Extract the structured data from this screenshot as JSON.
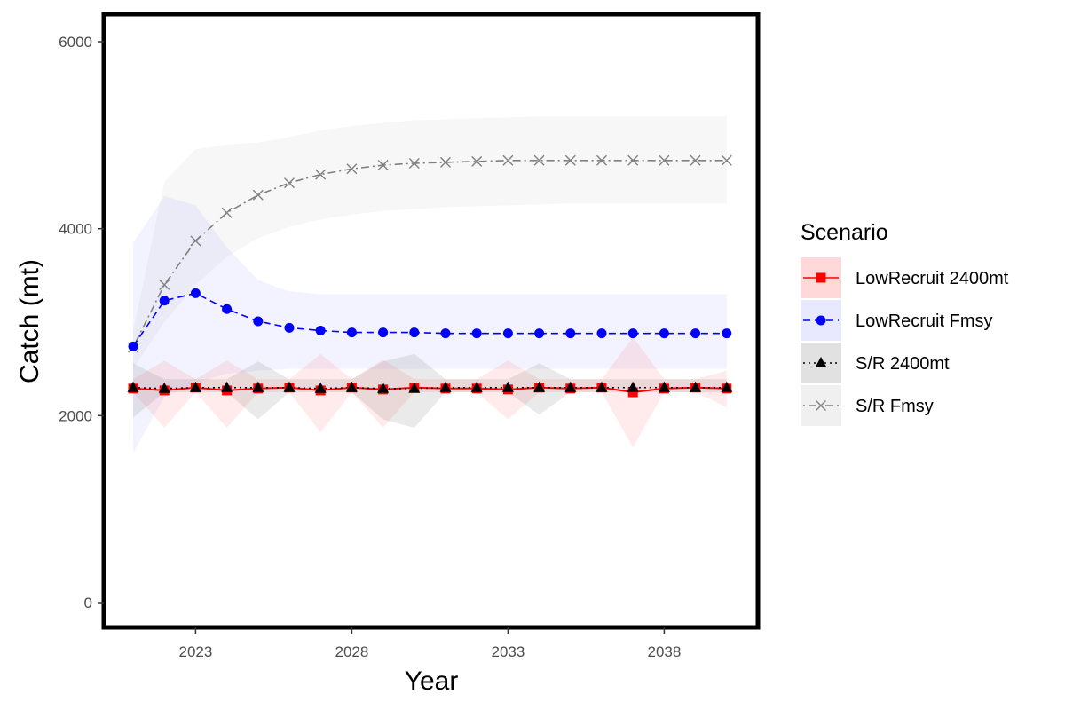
{
  "chart_data": {
    "type": "line",
    "title": "",
    "xlabel": "Year",
    "ylabel": "Catch (mt)",
    "xlim": [
      2021,
      2040
    ],
    "ylim": [
      0,
      6000
    ],
    "x_ticks": [
      2023,
      2028,
      2033,
      2038
    ],
    "y_ticks": [
      0,
      2000,
      4000,
      6000
    ],
    "grid": false,
    "legend": {
      "title": "Scenario",
      "position": "right"
    },
    "x": [
      2021,
      2022,
      2023,
      2024,
      2025,
      2026,
      2027,
      2028,
      2029,
      2030,
      2031,
      2032,
      2033,
      2034,
      2035,
      2036,
      2037,
      2038,
      2039,
      2040
    ],
    "series": [
      {
        "name": "LowRecruit 2400mt",
        "color": "#ff0000",
        "marker": "square",
        "linestyle": "solid",
        "band_fill": "#ff0000",
        "values": [
          2290,
          2270,
          2300,
          2270,
          2290,
          2300,
          2270,
          2300,
          2280,
          2300,
          2290,
          2290,
          2280,
          2300,
          2290,
          2300,
          2250,
          2290,
          2300,
          2290
        ],
        "lower": [
          2250,
          1870,
          2250,
          1870,
          2250,
          2250,
          1820,
          2250,
          1870,
          2250,
          2250,
          2250,
          1960,
          2250,
          2250,
          2250,
          1660,
          2250,
          2250,
          2090
        ],
        "upper": [
          2390,
          2590,
          2390,
          2590,
          2390,
          2390,
          2660,
          2390,
          2600,
          2390,
          2390,
          2390,
          2590,
          2390,
          2390,
          2390,
          2840,
          2390,
          2390,
          2480
        ]
      },
      {
        "name": "LowRecruit Fmsy",
        "color": "#0000ff",
        "marker": "circle",
        "linestyle": "dashed",
        "band_fill": "#6666ff",
        "values": [
          2740,
          3230,
          3310,
          3140,
          3010,
          2940,
          2910,
          2890,
          2890,
          2890,
          2880,
          2880,
          2880,
          2880,
          2880,
          2880,
          2880,
          2880,
          2880,
          2880
        ],
        "lower": [
          1600,
          2200,
          2350,
          2450,
          2480,
          2500,
          2500,
          2500,
          2500,
          2500,
          2500,
          2500,
          2500,
          2500,
          2500,
          2500,
          2500,
          2500,
          2500,
          2500
        ],
        "upper": [
          3850,
          4350,
          4250,
          3800,
          3450,
          3330,
          3300,
          3300,
          3300,
          3300,
          3300,
          3300,
          3300,
          3300,
          3300,
          3300,
          3300,
          3300,
          3300,
          3300
        ]
      },
      {
        "name": "S/R 2400mt",
        "color": "#000000",
        "marker": "triangle",
        "linestyle": "dotted",
        "band_fill": "#333333",
        "values": [
          2300,
          2290,
          2300,
          2300,
          2300,
          2300,
          2290,
          2300,
          2290,
          2290,
          2300,
          2300,
          2300,
          2300,
          2300,
          2300,
          2300,
          2300,
          2300,
          2300
        ],
        "lower": [
          1980,
          2250,
          2250,
          2250,
          1960,
          2250,
          2250,
          2250,
          1960,
          1870,
          2250,
          2250,
          2250,
          2010,
          2250,
          2250,
          2250,
          2250,
          2250,
          2250
        ],
        "upper": [
          2560,
          2390,
          2390,
          2390,
          2580,
          2390,
          2390,
          2390,
          2580,
          2660,
          2390,
          2390,
          2390,
          2560,
          2390,
          2390,
          2390,
          2390,
          2390,
          2390
        ]
      },
      {
        "name": "S/R Fmsy",
        "color": "#808080",
        "marker": "x",
        "linestyle": "dotdash",
        "band_fill": "#999999",
        "values": [
          2730,
          3400,
          3870,
          4170,
          4360,
          4490,
          4580,
          4640,
          4680,
          4700,
          4710,
          4720,
          4730,
          4730,
          4730,
          4730,
          4730,
          4730,
          4730,
          4730
        ],
        "lower": [
          2500,
          3000,
          3400,
          3700,
          3900,
          4020,
          4100,
          4150,
          4190,
          4210,
          4230,
          4240,
          4250,
          4260,
          4270,
          4270,
          4270,
          4270,
          4270,
          4270
        ],
        "upper": [
          2900,
          4500,
          4850,
          4900,
          4920,
          4980,
          5050,
          5100,
          5130,
          5160,
          5170,
          5180,
          5190,
          5200,
          5200,
          5200,
          5200,
          5200,
          5200,
          5200
        ]
      }
    ]
  }
}
